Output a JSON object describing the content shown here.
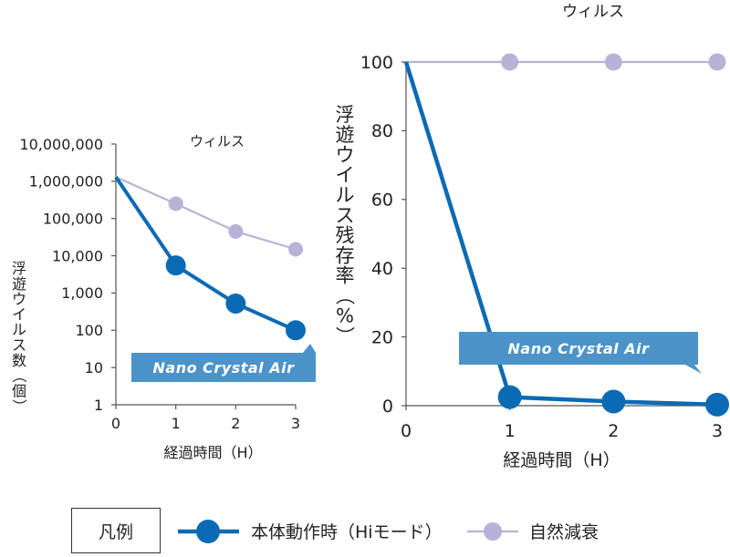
{
  "legend": {
    "title": "凡例",
    "items": [
      {
        "name": "本体動作時（Hiモード）",
        "color": "#0a6bb4"
      },
      {
        "name": "自然減衰",
        "color": "#b8b3d6"
      }
    ]
  },
  "chart_data": [
    {
      "type": "line",
      "title": "ウィルス",
      "xlabel": "経過時間（H）",
      "ylabel": "浮遊ウイルス数（個）",
      "yscale": "log",
      "xlim": [
        0,
        3
      ],
      "ylim": [
        1,
        10000000
      ],
      "x_ticks": [
        "0",
        "1",
        "2",
        "3"
      ],
      "y_ticks": [
        "1",
        "10",
        "100",
        "1,000",
        "10,000",
        "100,000",
        "1,000,000",
        "10,000,000"
      ],
      "badge": "Nano Crystal Air",
      "series": [
        {
          "name": "自然減衰",
          "color": "#b8b3d6",
          "x": [
            0,
            1,
            2,
            3
          ],
          "y": [
            1300000,
            250000,
            45000,
            15000
          ]
        },
        {
          "name": "本体動作時（Hiモード）",
          "color": "#0a6bb4",
          "x": [
            0,
            1,
            2,
            3
          ],
          "y": [
            1300000,
            5500,
            520,
            100
          ]
        }
      ]
    },
    {
      "type": "line",
      "title": "ウィルス",
      "xlabel": "経過時間（H）",
      "ylabel": "浮遊ウイルス残存率（%）",
      "xlim": [
        0,
        3
      ],
      "ylim": [
        0,
        100
      ],
      "x_ticks": [
        "0",
        "1",
        "2",
        "3"
      ],
      "y_ticks": [
        "0",
        "20",
        "40",
        "60",
        "80",
        "100"
      ],
      "badge": "Nano Crystal Air",
      "series": [
        {
          "name": "自然減衰",
          "color": "#b8b3d6",
          "x": [
            0,
            1,
            2,
            3
          ],
          "y": [
            100,
            100,
            100,
            100
          ]
        },
        {
          "name": "本体動作時（Hiモード）",
          "color": "#0a6bb4",
          "x": [
            0,
            1,
            2,
            3
          ],
          "y": [
            100,
            2.5,
            1.2,
            0.3
          ]
        }
      ]
    }
  ]
}
